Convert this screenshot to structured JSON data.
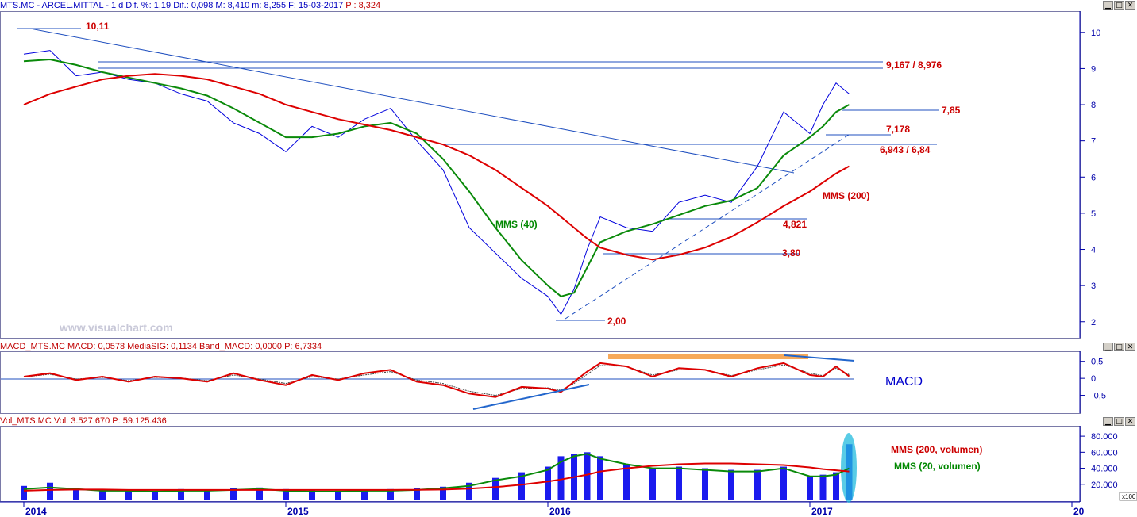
{
  "colors": {
    "price": "#0000dd",
    "mms40": "#0a8a0a",
    "mms200": "#dd0000",
    "annotation_red": "#cc0000",
    "annotation_green": "#008800",
    "line": "#2255cc",
    "axis": "#0000aa",
    "highlight_orange": "#f7a95a",
    "volume": "#1a1aee",
    "volume_highlight": "#22bbdd"
  },
  "price_panel": {
    "header": {
      "symbol_text": "MTS.MC - ARCEL.MITTAL - 1 d Dif. %: 1,19 Dif.: 0,098 M: 8,410 m: 8,255 F: 15-03-2017",
      "last_text": "P : 8,324"
    },
    "watermark": "www.visualchart.com",
    "labels": {
      "high_1011": "10,11",
      "resistance": "9,167 / 8,976",
      "level_785": "7,85",
      "level_7178": "7,178",
      "level_6943": "6,943 / 6,84",
      "mms200": "MMS (200)",
      "level_4821": "4,821",
      "mms40": "MMS (40)",
      "level_380": "3,80",
      "low_200": "2,00"
    }
  },
  "macd_panel": {
    "header": {
      "symbol_text": "MACD_MTS.MC MACD: 0,0578 MediaSIG: 0,1134 Band_MACD: 0,0000",
      "last_text": "P: 6,7334"
    },
    "title": "MACD"
  },
  "volume_panel": {
    "header": {
      "symbol_text": "Vol_MTS.MC Vol: 3.527.670",
      "last_text": "P: 59.125.436"
    },
    "labels": {
      "mms200_vol": "MMS (200, volumen)",
      "mms20_vol": "MMS (20, volumen)"
    },
    "scale_note": "x100"
  },
  "chart_data": [
    {
      "type": "line",
      "name": "price",
      "ylim": [
        1.6,
        10.5
      ],
      "y_ticks": [
        "10",
        "9",
        "8",
        "7",
        "6",
        "5",
        "4",
        "3",
        "2"
      ],
      "x_ticks": [
        "2014",
        "2015",
        "2016",
        "2017",
        "20"
      ],
      "x": [
        2014.0,
        2014.1,
        2014.2,
        2014.3,
        2014.4,
        2014.5,
        2014.6,
        2014.7,
        2014.8,
        2014.9,
        2015.0,
        2015.1,
        2015.2,
        2015.3,
        2015.4,
        2015.5,
        2015.6,
        2015.7,
        2015.8,
        2015.9,
        2016.0,
        2016.05,
        2016.1,
        2016.15,
        2016.2,
        2016.3,
        2016.4,
        2016.5,
        2016.6,
        2016.7,
        2016.8,
        2016.9,
        2017.0,
        2017.05,
        2017.1,
        2017.15
      ],
      "series": [
        {
          "values": [
            9.4,
            9.5,
            8.8,
            8.9,
            8.7,
            8.6,
            8.3,
            8.1,
            7.5,
            7.2,
            6.7,
            7.4,
            7.1,
            7.6,
            7.9,
            7.0,
            6.2,
            4.6,
            3.9,
            3.2,
            2.7,
            2.2,
            2.9,
            4.0,
            4.9,
            4.6,
            4.5,
            5.3,
            5.5,
            5.3,
            6.3,
            7.8,
            7.2,
            8.0,
            8.6,
            8.3
          ]
        },
        {
          "values": [
            9.2,
            9.25,
            9.1,
            8.9,
            8.75,
            8.6,
            8.45,
            8.25,
            7.9,
            7.5,
            7.1,
            7.1,
            7.2,
            7.4,
            7.5,
            7.2,
            6.5,
            5.6,
            4.6,
            3.7,
            3.0,
            2.7,
            2.8,
            3.5,
            4.2,
            4.5,
            4.7,
            4.95,
            5.2,
            5.35,
            5.7,
            6.6,
            7.1,
            7.4,
            7.8,
            8.0
          ]
        },
        {
          "values": [
            8.0,
            8.3,
            8.5,
            8.7,
            8.8,
            8.85,
            8.8,
            8.7,
            8.5,
            8.3,
            8.0,
            7.8,
            7.6,
            7.45,
            7.3,
            7.1,
            6.9,
            6.6,
            6.2,
            5.7,
            5.2,
            4.9,
            4.6,
            4.3,
            4.05,
            3.85,
            3.72,
            3.85,
            4.05,
            4.35,
            4.75,
            5.2,
            5.6,
            5.85,
            6.1,
            6.3
          ]
        }
      ]
    },
    {
      "type": "line",
      "name": "macd",
      "ylim": [
        -1.0,
        0.75
      ],
      "y_ticks": [
        "0,5",
        "0",
        "-0,5"
      ],
      "x": [
        2014.0,
        2014.1,
        2014.2,
        2014.3,
        2014.4,
        2014.5,
        2014.6,
        2014.7,
        2014.8,
        2014.9,
        2015.0,
        2015.1,
        2015.2,
        2015.3,
        2015.4,
        2015.5,
        2015.6,
        2015.7,
        2015.8,
        2015.9,
        2016.0,
        2016.05,
        2016.1,
        2016.15,
        2016.2,
        2016.3,
        2016.4,
        2016.5,
        2016.6,
        2016.7,
        2016.8,
        2016.9,
        2017.0,
        2017.05,
        2017.1,
        2017.15
      ],
      "series": [
        {
          "values": [
            0.05,
            0.15,
            -0.05,
            0.05,
            -0.1,
            0.05,
            0.0,
            -0.1,
            0.15,
            -0.05,
            -0.2,
            0.1,
            -0.05,
            0.15,
            0.25,
            -0.1,
            -0.2,
            -0.45,
            -0.55,
            -0.25,
            -0.3,
            -0.4,
            -0.1,
            0.2,
            0.45,
            0.35,
            0.05,
            0.3,
            0.25,
            0.05,
            0.3,
            0.45,
            0.1,
            0.05,
            0.35,
            0.06
          ]
        },
        {
          "values": [
            0.04,
            0.12,
            -0.02,
            0.03,
            -0.07,
            0.03,
            0.01,
            -0.07,
            0.1,
            -0.02,
            -0.15,
            0.05,
            -0.02,
            0.1,
            0.2,
            -0.05,
            -0.15,
            -0.38,
            -0.5,
            -0.3,
            -0.28,
            -0.35,
            -0.15,
            0.12,
            0.38,
            0.35,
            0.1,
            0.25,
            0.25,
            0.08,
            0.25,
            0.4,
            0.15,
            0.08,
            0.3,
            0.11
          ]
        }
      ]
    },
    {
      "type": "bar",
      "name": "volume",
      "ylim": [
        0,
        90000
      ],
      "y_ticks": [
        "80.000",
        "60.000",
        "40.000",
        "20.000"
      ],
      "x": [
        2014.0,
        2014.1,
        2014.2,
        2014.3,
        2014.4,
        2014.5,
        2014.6,
        2014.7,
        2014.8,
        2014.9,
        2015.0,
        2015.1,
        2015.2,
        2015.3,
        2015.4,
        2015.5,
        2015.6,
        2015.7,
        2015.8,
        2015.9,
        2016.0,
        2016.05,
        2016.1,
        2016.15,
        2016.2,
        2016.3,
        2016.4,
        2016.5,
        2016.6,
        2016.7,
        2016.8,
        2016.9,
        2017.0,
        2017.05,
        2017.1,
        2017.15
      ],
      "series": [
        {
          "values": [
            18000,
            22000,
            15000,
            14000,
            13000,
            12000,
            14000,
            13000,
            15000,
            16000,
            14000,
            13000,
            12000,
            13000,
            14000,
            15000,
            17000,
            22000,
            28000,
            35000,
            42000,
            55000,
            58000,
            60000,
            55000,
            45000,
            40000,
            42000,
            40000,
            38000,
            38000,
            42000,
            30000,
            32000,
            35000,
            70000
          ]
        },
        {
          "values": [
            14000,
            16000,
            14000,
            12000,
            12000,
            11000,
            12000,
            12000,
            13000,
            14000,
            12000,
            11000,
            11000,
            12000,
            12000,
            13000,
            15000,
            18000,
            25000,
            30000,
            38000,
            48000,
            55000,
            58000,
            52000,
            45000,
            40000,
            40000,
            38000,
            36000,
            36000,
            40000,
            30000,
            30000,
            32000,
            40000
          ]
        },
        {
          "values": [
            12000,
            13000,
            13500,
            13500,
            13000,
            13000,
            13000,
            13000,
            13000,
            13000,
            13000,
            13000,
            13000,
            13000,
            13000,
            13200,
            13500,
            14500,
            16500,
            19500,
            23500,
            26000,
            29000,
            32000,
            36000,
            40000,
            43000,
            45000,
            46000,
            46000,
            45000,
            44000,
            41000,
            39000,
            37500,
            36000
          ]
        }
      ]
    }
  ]
}
